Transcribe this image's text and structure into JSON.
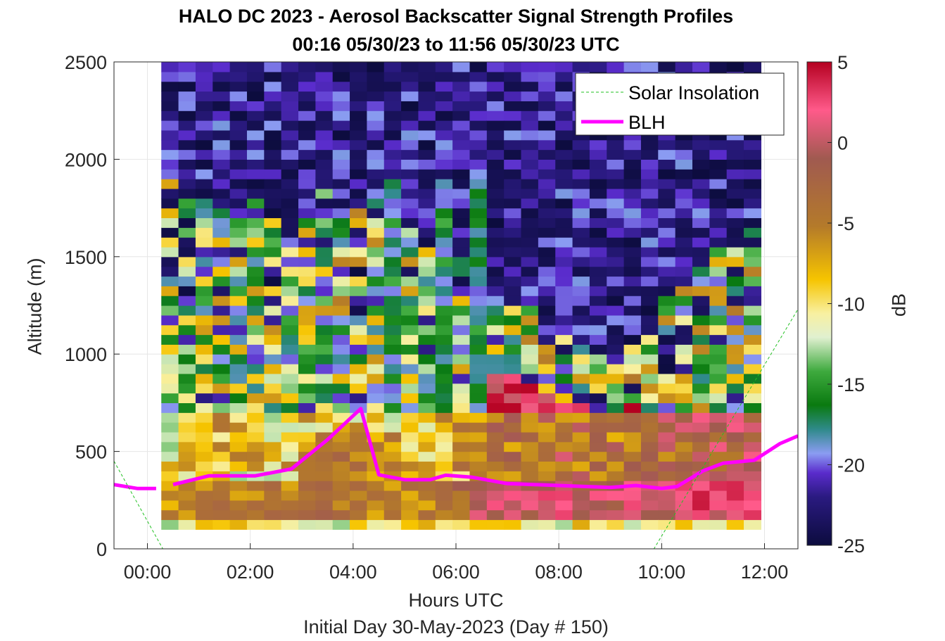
{
  "chart_data": {
    "type": "heatmap",
    "title": "HALO DC 2023 - Aerosol Backscatter Signal Strength Profiles",
    "subtitle": "00:16 05/30/23 to 11:56 05/30/23  UTC",
    "xlabel": "Hours UTC",
    "xlabel2": "Initial Day 30-May-2023 (Day # 150)",
    "ylabel": "Altitude (m)",
    "colorbar_label": "dB",
    "xlim": [
      -0.65,
      12.65
    ],
    "ylim": [
      0,
      2500
    ],
    "x_tick_labels": [
      "00:00",
      "02:00",
      "04:00",
      "06:00",
      "08:00",
      "10:00",
      "12:00"
    ],
    "x_tick_values": [
      0,
      2,
      4,
      6,
      8,
      10,
      12
    ],
    "y_tick_values": [
      0,
      500,
      1000,
      1500,
      2000,
      2500
    ],
    "y_tick_labels": [
      "0",
      "500",
      "1000",
      "1500",
      "2000",
      "2500"
    ],
    "colorbar_range": [
      -25,
      5
    ],
    "colorbar_ticks": [
      5,
      0,
      -5,
      -10,
      -15,
      -20,
      -25
    ],
    "colorbar_tick_labels": [
      "5",
      "0",
      "-5",
      "-10",
      "-15",
      "-20",
      "-25"
    ],
    "grid": true,
    "legend_position": "top-right",
    "legend": [
      {
        "label": "Solar Insolation",
        "color": "#22c022",
        "style": "dashed"
      },
      {
        "label": "BLH",
        "color": "#ff00ff",
        "style": "solid"
      }
    ],
    "heatmap": {
      "x_start": 0.27,
      "x_end": 11.93,
      "time_bins": 35,
      "alt_start": 100,
      "alt_end": 2500,
      "alt_bins": 48,
      "profile_note": "approximate dB values reconstructed from colors"
    },
    "series": [
      {
        "name": "BLH",
        "x": [
          -0.65,
          -0.2,
          0.17,
          null,
          0.5,
          1.2,
          2.1,
          2.8,
          3.5,
          4.15,
          4.5,
          5.0,
          5.5,
          5.8,
          6.3,
          7.0,
          8.0,
          9.0,
          9.5,
          10.0,
          10.3,
          10.8,
          11.2,
          11.8,
          12.3,
          12.65
        ],
        "y": [
          330,
          310,
          310,
          null,
          330,
          375,
          375,
          410,
          560,
          720,
          380,
          355,
          355,
          378,
          368,
          335,
          325,
          315,
          325,
          310,
          320,
          400,
          440,
          455,
          540,
          580
        ]
      },
      {
        "name": "Solar Insolation",
        "x": [
          -0.65,
          0.3,
          9.85,
          12.65
        ],
        "y": [
          450,
          0,
          0,
          1230
        ]
      }
    ]
  }
}
